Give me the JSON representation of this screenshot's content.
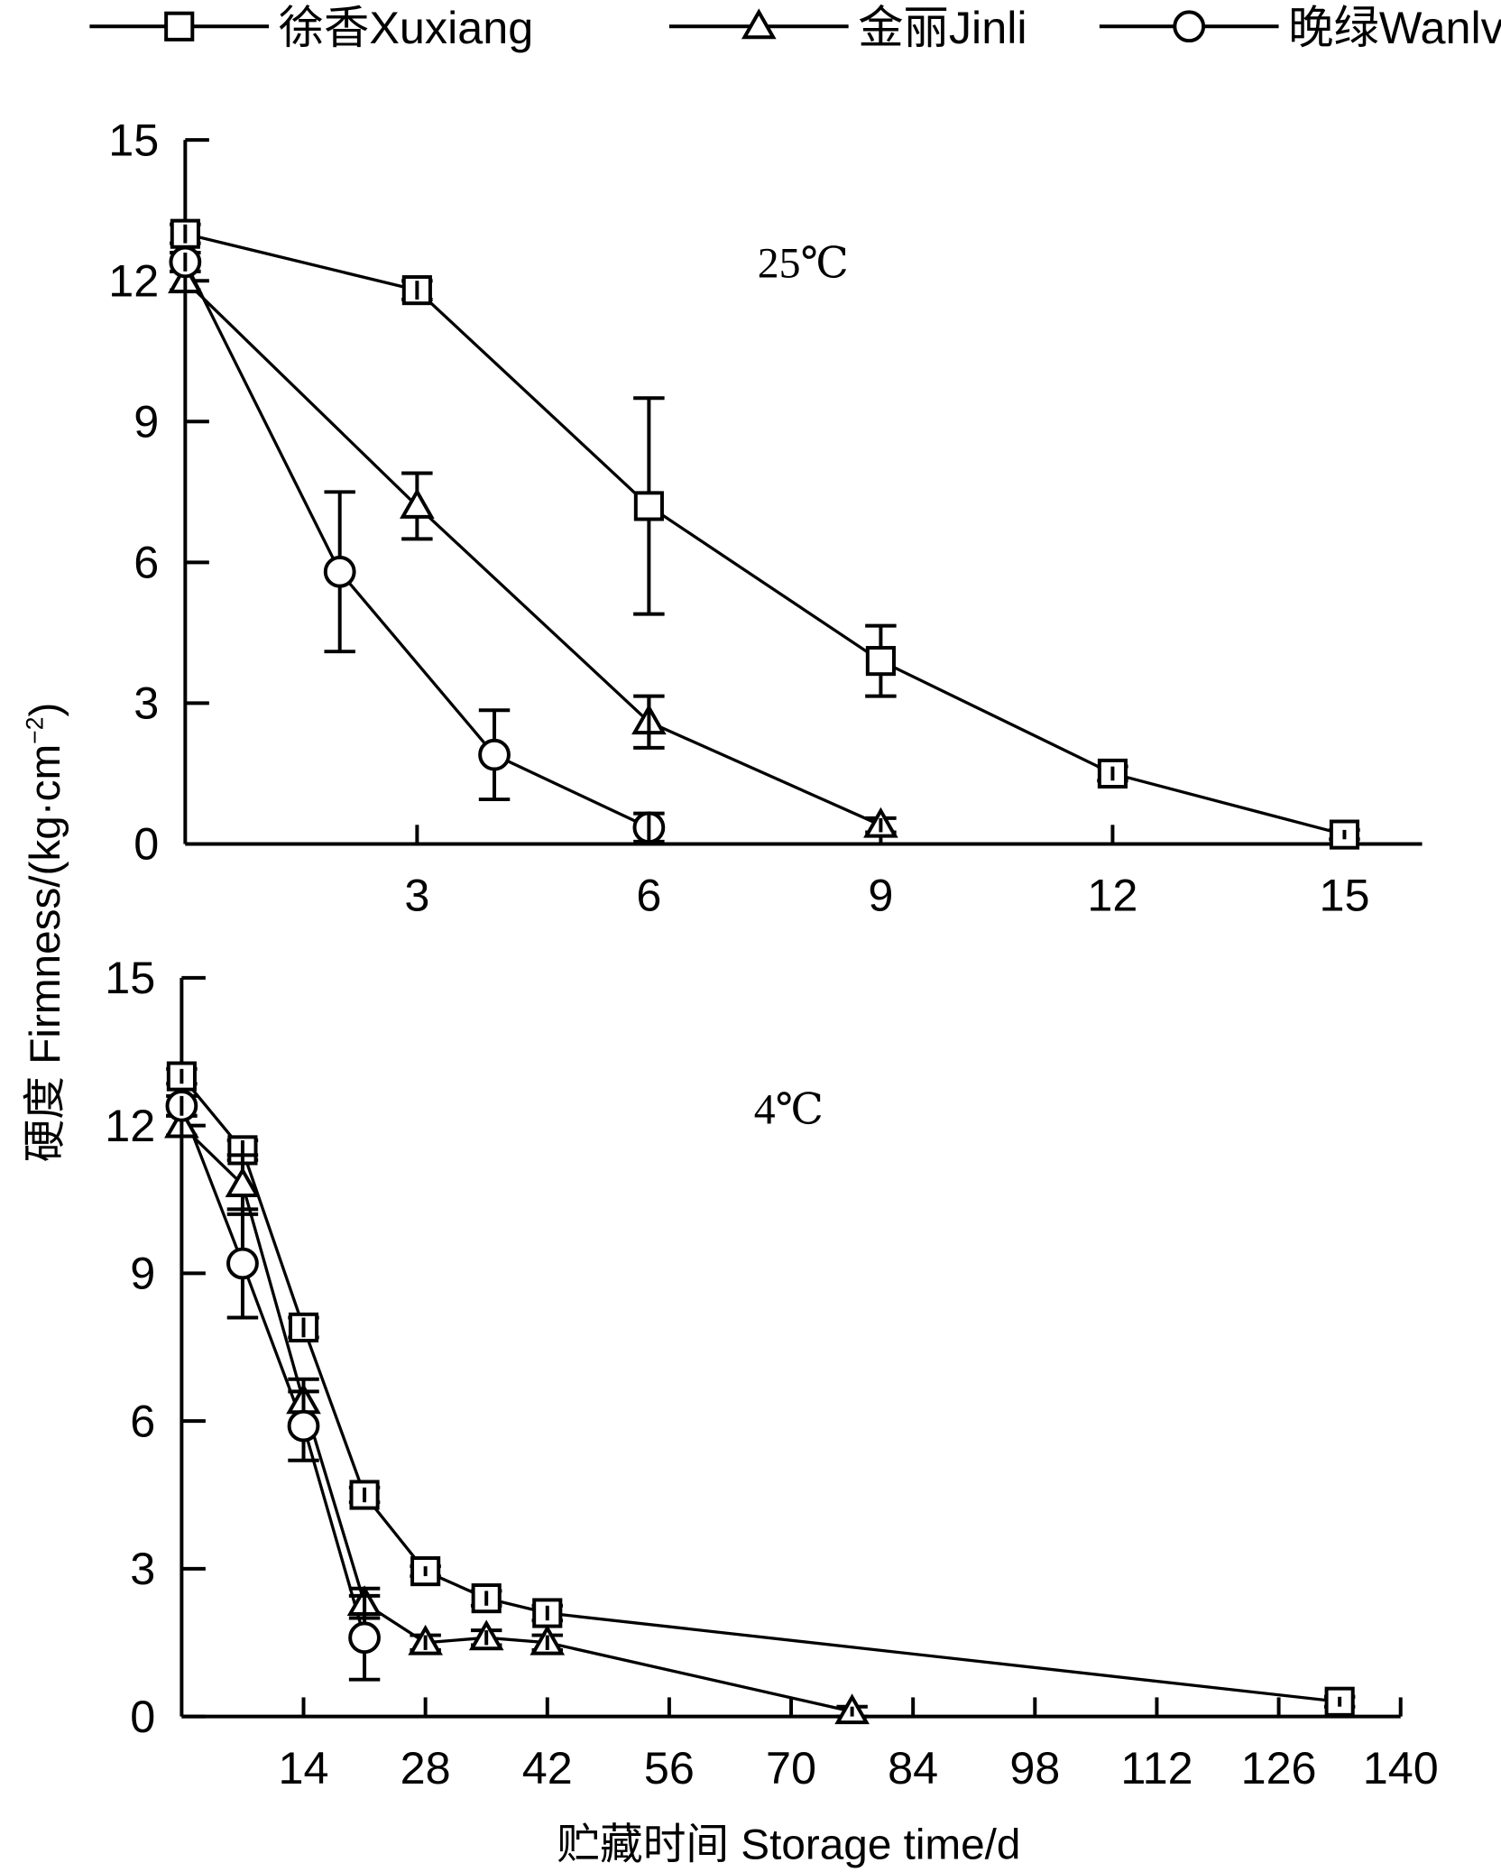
{
  "legend": [
    {
      "name": "徐香Xuxiang",
      "marker": "square"
    },
    {
      "name": "金丽Jinli",
      "marker": "triangle"
    },
    {
      "name": "晚绿Wanlv",
      "marker": "circle"
    }
  ],
  "ylabel_main": "硬度 Firmness/(kg·cm",
  "ylabel_sup": "−2",
  "ylabel_end": ")",
  "xlabel": "贮藏时间 Storage time/d",
  "chart_data": [
    {
      "type": "line",
      "title": "25℃",
      "xlim": [
        0,
        16
      ],
      "ylim": [
        0,
        15
      ],
      "xticks": [
        3,
        6,
        9,
        12,
        15
      ],
      "yticks": [
        0,
        3,
        6,
        9,
        12,
        15
      ],
      "series": [
        {
          "name": "徐香Xuxiang",
          "marker": "square",
          "x": [
            0,
            3,
            6,
            9,
            12,
            15
          ],
          "y": [
            13,
            11.8,
            7.2,
            3.9,
            1.5,
            0.2
          ],
          "err": [
            0.2,
            0.2,
            2.3,
            0.75,
            0.15,
            0.1
          ]
        },
        {
          "name": "金丽Jinli",
          "marker": "triangle",
          "x": [
            0,
            3,
            6,
            9
          ],
          "y": [
            12,
            7.2,
            2.6,
            0.4
          ],
          "err": [
            0.2,
            0.7,
            0.55,
            0.15
          ]
        },
        {
          "name": "晚绿Wanlv",
          "marker": "circle",
          "x": [
            0,
            2,
            4,
            6
          ],
          "y": [
            12.4,
            5.8,
            1.9,
            0.35
          ],
          "err": [
            0.2,
            1.7,
            0.95,
            0.3
          ]
        }
      ]
    },
    {
      "type": "line",
      "title": "4℃",
      "xlim": [
        0,
        140
      ],
      "ylim": [
        0,
        15
      ],
      "xticks": [
        14,
        28,
        42,
        56,
        70,
        84,
        98,
        112,
        126,
        140
      ],
      "yticks": [
        0,
        3,
        6,
        9,
        12,
        15
      ],
      "series": [
        {
          "name": "徐香Xuxiang",
          "marker": "square",
          "x": [
            0,
            7,
            14,
            21,
            28,
            35,
            42,
            133
          ],
          "y": [
            13,
            11.5,
            7.9,
            4.5,
            2.95,
            2.4,
            2.1,
            0.3
          ],
          "err": [
            0.15,
            0.2,
            0.2,
            0.15,
            0.1,
            0.15,
            0.15,
            0.1
          ]
        },
        {
          "name": "金丽Jinli",
          "marker": "triangle",
          "x": [
            0,
            7,
            14,
            21,
            28,
            35,
            42,
            77
          ],
          "y": [
            12,
            10.8,
            6.4,
            2.3,
            1.5,
            1.6,
            1.5,
            0.1
          ],
          "err": [
            0.2,
            0.6,
            0.45,
            0.3,
            0.15,
            0.15,
            0.15,
            0.1
          ]
        },
        {
          "name": "晚绿Wanlv",
          "marker": "circle",
          "x": [
            0,
            7,
            14,
            21
          ],
          "y": [
            12.4,
            9.2,
            5.9,
            1.6
          ],
          "err": [
            0.2,
            1.1,
            0.7,
            0.85
          ]
        }
      ]
    }
  ]
}
